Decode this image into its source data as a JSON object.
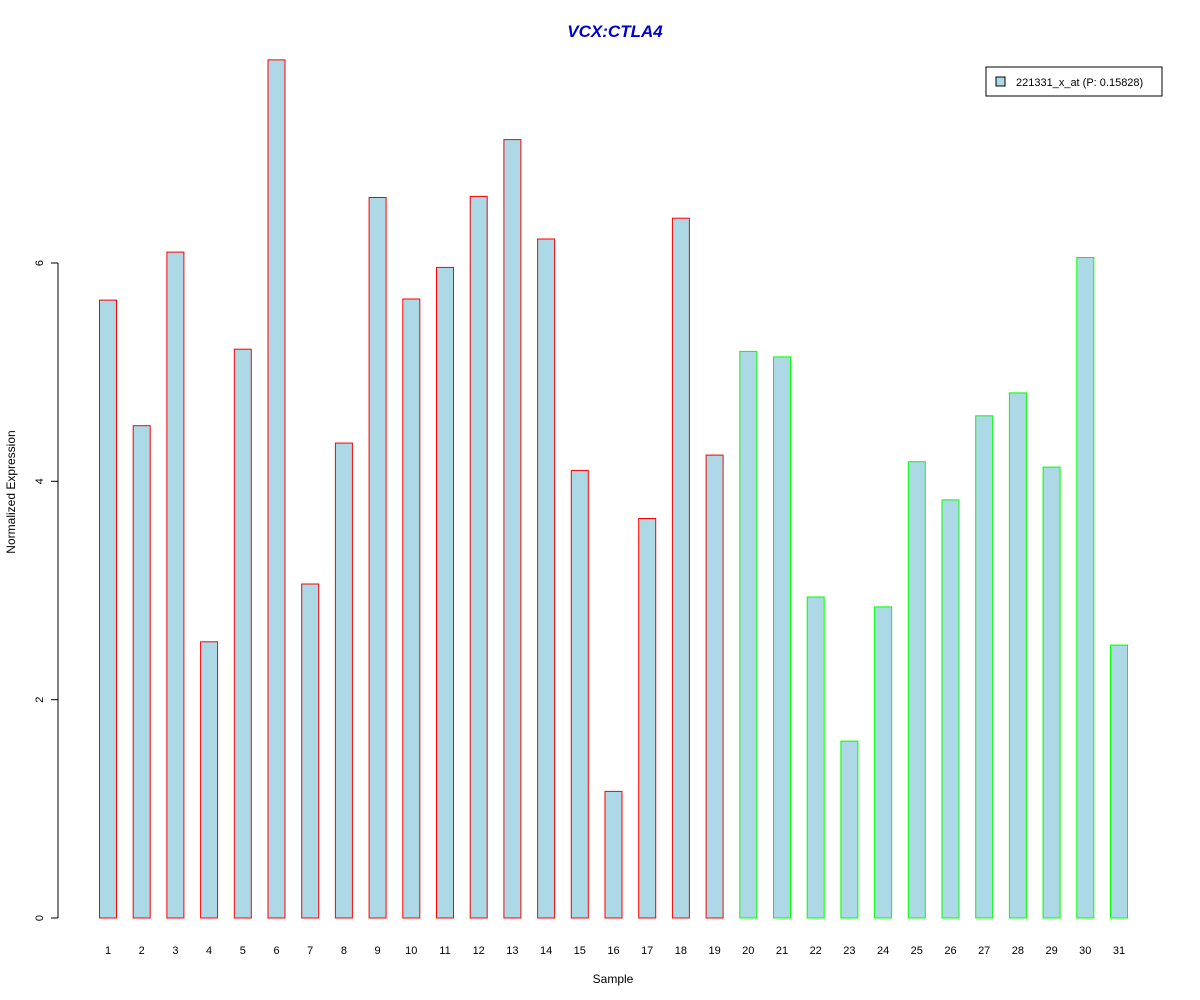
{
  "chart_data": {
    "type": "bar",
    "title": "VCX:CTLA4",
    "xlabel": "Sample",
    "ylabel": "Normalized Expression",
    "ylim": [
      0,
      7.95
    ],
    "yticks": [
      0,
      2,
      4,
      6
    ],
    "grid": false,
    "legend_position": "top-right",
    "categories": [
      "1",
      "2",
      "3",
      "4",
      "5",
      "6",
      "7",
      "8",
      "9",
      "10",
      "11",
      "12",
      "13",
      "14",
      "15",
      "16",
      "17",
      "18",
      "19",
      "20",
      "21",
      "22",
      "23",
      "24",
      "25",
      "26",
      "27",
      "28",
      "29",
      "30",
      "31"
    ],
    "series": [
      {
        "name": "221331_x_at (P: 0.15828)",
        "values": [
          5.66,
          4.51,
          6.1,
          2.53,
          5.21,
          7.86,
          3.06,
          4.35,
          6.6,
          5.67,
          5.96,
          6.61,
          7.13,
          6.22,
          4.1,
          1.16,
          3.66,
          6.41,
          4.24,
          5.19,
          5.14,
          2.94,
          1.62,
          2.85,
          4.18,
          3.83,
          4.6,
          4.81,
          4.13,
          6.05,
          2.5
        ]
      }
    ],
    "fill_color": "#add8e6",
    "group_border_colors": {
      "group1": "#ff0000",
      "group2": "#00ff00"
    },
    "group_assignment": [
      1,
      1,
      1,
      1,
      1,
      1,
      1,
      1,
      1,
      1,
      1,
      1,
      1,
      1,
      1,
      1,
      1,
      1,
      1,
      2,
      2,
      2,
      2,
      2,
      2,
      2,
      2,
      2,
      2,
      2,
      2
    ]
  }
}
